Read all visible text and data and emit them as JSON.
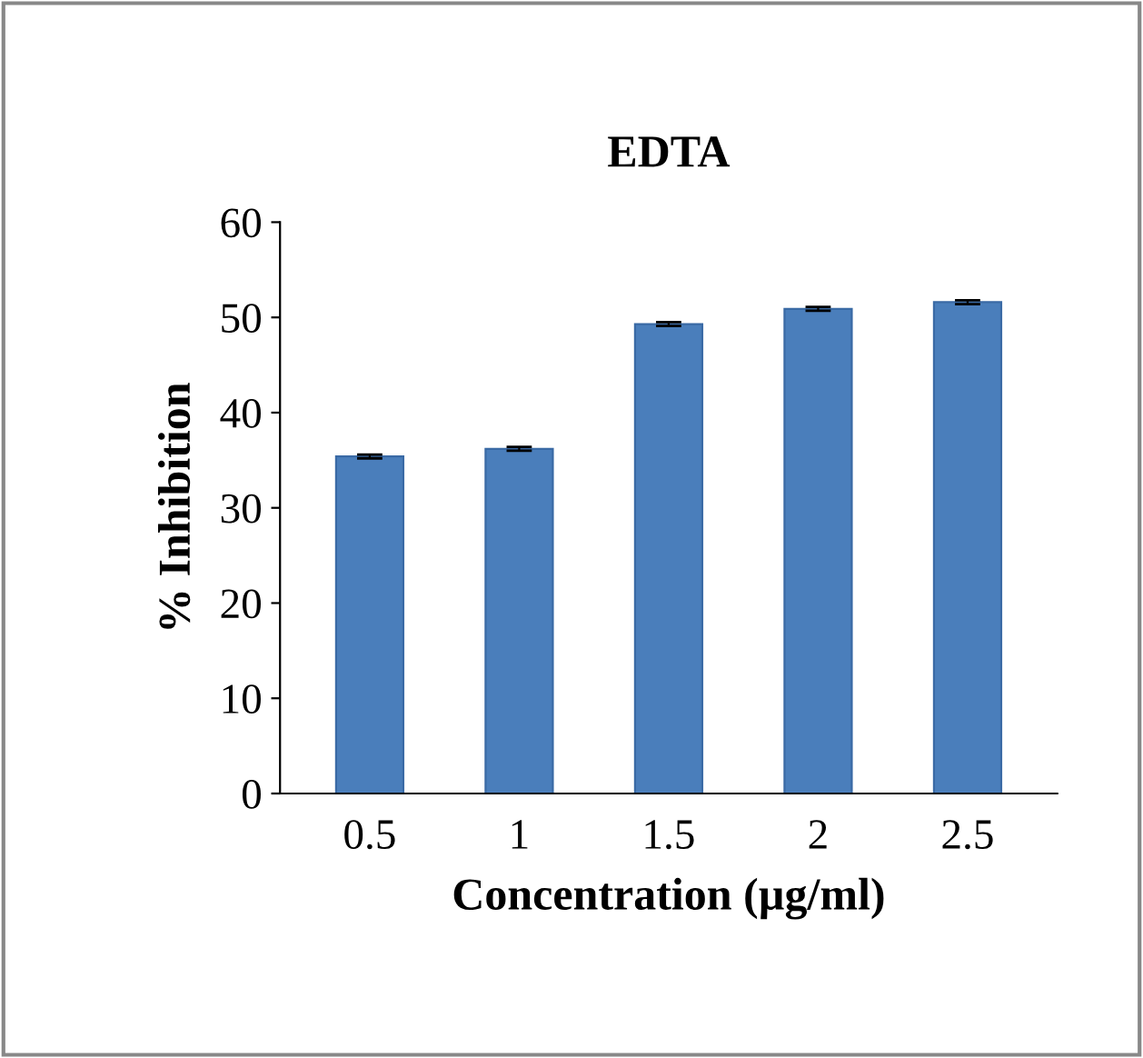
{
  "chart_data": {
    "type": "bar",
    "title": "EDTA",
    "xlabel": "Concentration (µg/ml)",
    "ylabel": "% Inhibition",
    "categories": [
      "0.5",
      "1",
      "1.5",
      "2",
      "2.5"
    ],
    "values": [
      35.4,
      36.2,
      49.3,
      50.9,
      51.6
    ],
    "errors": [
      0.2,
      0.2,
      0.2,
      0.2,
      0.2
    ],
    "color": "#4a7ebb",
    "ylim": [
      0,
      60
    ],
    "yticks": [
      0,
      10,
      20,
      30,
      40,
      50,
      60
    ],
    "grid": false
  }
}
